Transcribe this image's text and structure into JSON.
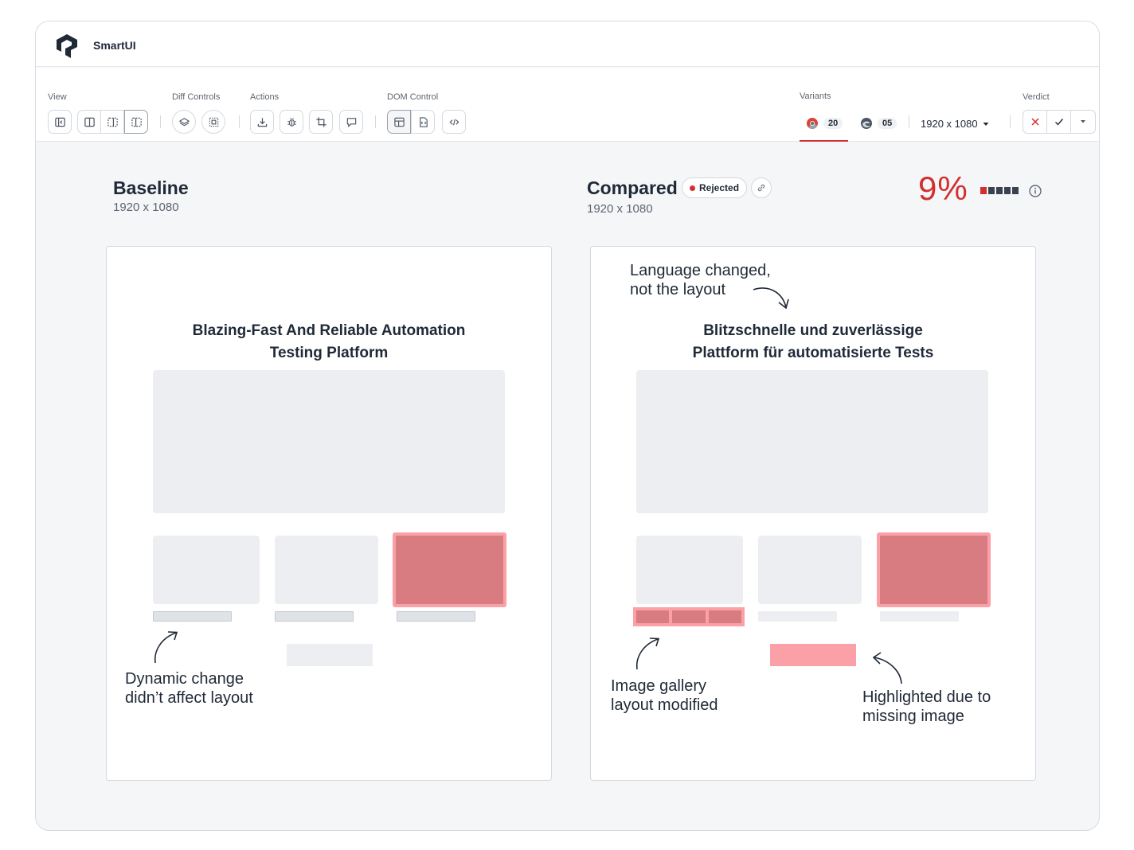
{
  "app": {
    "title": "SmartUI"
  },
  "toolbar": {
    "groups": {
      "view": "View",
      "diff_controls": "Diff Controls",
      "actions": "Actions",
      "dom_control": "DOM Control",
      "variants": "Variants",
      "verdict": "Verdict"
    },
    "variants": [
      {
        "browser_icon": "chrome-icon",
        "count": "20"
      },
      {
        "browser_icon": "edge-icon",
        "count": "05"
      }
    ],
    "resolution": "1920 x 1080"
  },
  "baseline": {
    "title": "Baseline",
    "resolution": "1920 x 1080",
    "heading_line1": "Blazing-Fast And Reliable Automation",
    "heading_line2": "Testing Platform",
    "note_line1": "Dynamic change",
    "note_line2": "didn’t affect layout"
  },
  "compared": {
    "title": "Compared",
    "status": "Rejected",
    "resolution": "1920 x 1080",
    "mismatch": "9%",
    "mismatch_bars_filled": 1,
    "mismatch_bars_total": 5,
    "heading_line1": "Blitzschnelle und zuverlässige",
    "heading_line2": "Plattform für automatisierte Tests",
    "note_language_line1": "Language changed,",
    "note_language_line2": "not the layout",
    "note_gallery_line1": "Image gallery",
    "note_gallery_line2": "layout modified",
    "note_missing_line1": "Highlighted due to",
    "note_missing_line2": "missing image"
  },
  "colors": {
    "accent_red": "#d32f2f",
    "highlight": "#d97c82",
    "highlight_border": "#fba0a6"
  }
}
